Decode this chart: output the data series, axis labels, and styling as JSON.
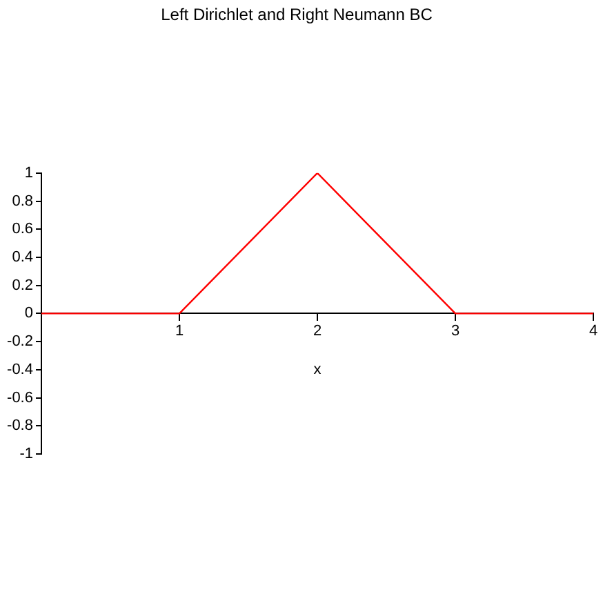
{
  "chart_data": {
    "type": "line",
    "title": "Left Dirichlet and Right Neumann BC",
    "xlabel": "x",
    "x": [
      0,
      1,
      2,
      3,
      4
    ],
    "series": [
      {
        "color": "#ff0000",
        "values": [
          0,
          0,
          1,
          0,
          0
        ]
      }
    ],
    "xlim": [
      0,
      4
    ],
    "xticks": [
      1,
      2,
      3,
      4
    ],
    "ylim": [
      -1,
      1
    ],
    "yticks": [
      -1,
      -0.8,
      -0.6,
      -0.4,
      -0.2,
      0,
      0.2,
      0.4,
      0.6,
      0.8,
      1
    ],
    "grid": false,
    "legend": false,
    "marker": "none",
    "line_style": "solid"
  }
}
